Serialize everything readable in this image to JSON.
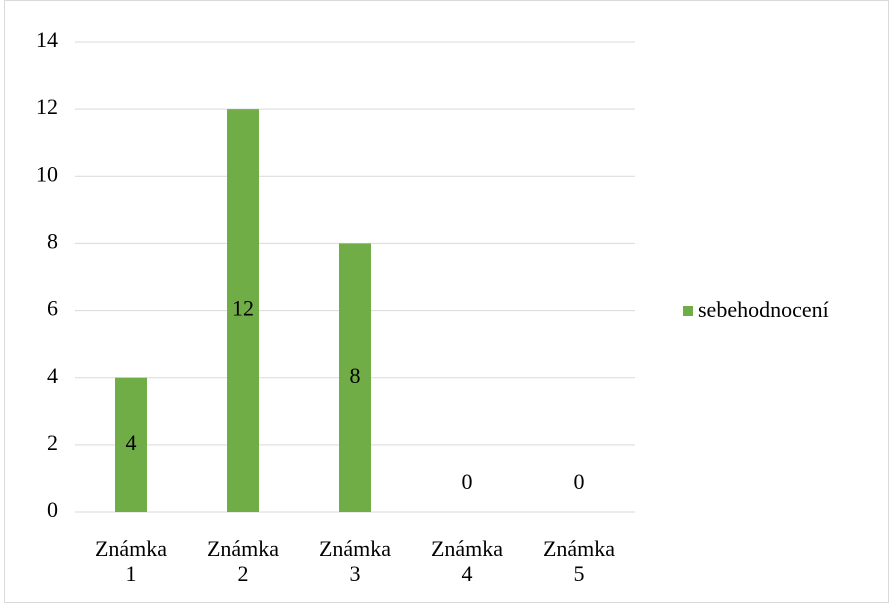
{
  "chart_data": {
    "type": "bar",
    "categories": [
      "Známka 1",
      "Známka 2",
      "Známka 3",
      "Známka 4",
      "Známka 5"
    ],
    "series": [
      {
        "name": "sebehodnocení",
        "color": "#70ad47",
        "values": [
          4,
          12,
          8,
          0,
          0
        ]
      }
    ],
    "ylim": [
      0,
      14
    ],
    "yticks": [
      0,
      2,
      4,
      6,
      8,
      10,
      12,
      14
    ],
    "grid": true,
    "legend": "right"
  }
}
